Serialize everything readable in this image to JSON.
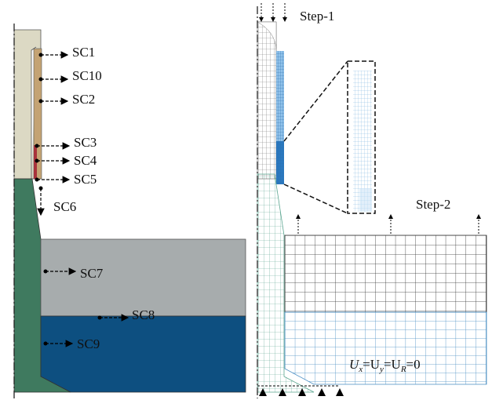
{
  "labels": {
    "sc1": "SC1",
    "sc10": "SC10",
    "sc2": "SC2",
    "sc3": "SC3",
    "sc4": "SC4",
    "sc5": "SC5",
    "sc6": "SC6",
    "sc7": "SC7",
    "sc8": "SC8",
    "sc9": "SC9"
  },
  "steps": {
    "step1": "Step-1",
    "step2": "Step-2"
  },
  "boundary_condition": [
    "U",
    "x",
    "=U",
    "y",
    "=U",
    "R",
    "=0"
  ]
}
